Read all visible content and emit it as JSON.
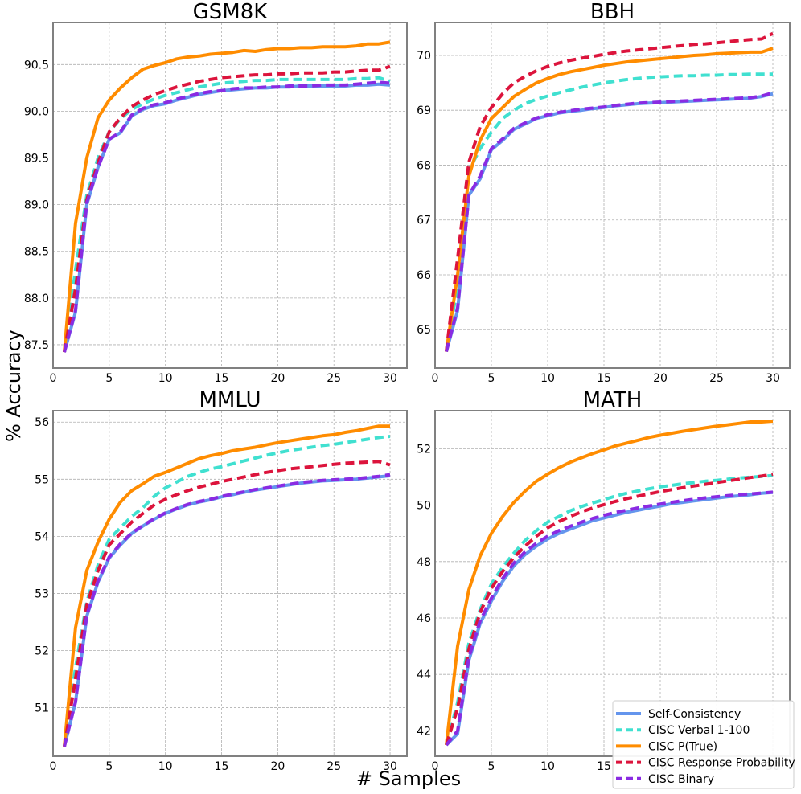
{
  "figure": {
    "xlabel": "# Samples",
    "ylabel": "% Accuracy"
  },
  "series_styles": [
    {
      "name": "Self-Consistency",
      "color": "#6495ED",
      "dashed": false
    },
    {
      "name": "CISC Verbal 1-100",
      "color": "#40E0D0",
      "dashed": true
    },
    {
      "name": "CISC P(True)",
      "color": "#FF8C00",
      "dashed": false
    },
    {
      "name": "CISC Response Probability",
      "color": "#DC143C",
      "dashed": true
    },
    {
      "name": "CISC Binary",
      "color": "#8A2BE2",
      "dashed": true
    }
  ],
  "chart_data": [
    {
      "type": "line",
      "title": "GSM8K",
      "xlabel": "# Samples",
      "ylabel": "% Accuracy",
      "x": [
        1,
        2,
        3,
        4,
        5,
        6,
        7,
        8,
        9,
        10,
        11,
        12,
        13,
        14,
        15,
        16,
        17,
        18,
        19,
        20,
        21,
        22,
        23,
        24,
        25,
        26,
        27,
        28,
        29,
        30
      ],
      "xlim": [
        0,
        31.5
      ],
      "ylim": [
        87.25,
        90.95
      ],
      "xticks": [
        0,
        5,
        10,
        15,
        20,
        25,
        30
      ],
      "yticks": [
        87.5,
        88.0,
        88.5,
        89.0,
        89.5,
        90.0,
        90.5
      ],
      "ytick_labels": [
        "87.5",
        "88.0",
        "88.5",
        "89.0",
        "89.5",
        "90.0",
        "90.5"
      ],
      "grid": true,
      "series": [
        {
          "name": "Self-Consistency",
          "values": [
            87.42,
            87.85,
            89.0,
            89.4,
            89.7,
            89.77,
            89.95,
            90.02,
            90.06,
            90.08,
            90.12,
            90.15,
            90.18,
            90.2,
            90.22,
            90.23,
            90.24,
            90.25,
            90.25,
            90.26,
            90.26,
            90.27,
            90.27,
            90.27,
            90.27,
            90.27,
            90.28,
            90.28,
            90.29,
            90.28
          ]
        },
        {
          "name": "CISC Verbal 1-100",
          "values": [
            87.42,
            88.3,
            89.1,
            89.5,
            89.78,
            89.92,
            90.02,
            90.08,
            90.13,
            90.17,
            90.2,
            90.23,
            90.26,
            90.28,
            90.3,
            90.31,
            90.32,
            90.33,
            90.33,
            90.34,
            90.34,
            90.34,
            90.34,
            90.34,
            90.34,
            90.34,
            90.35,
            90.35,
            90.36,
            90.32
          ]
        },
        {
          "name": "CISC P(True)",
          "values": [
            87.42,
            88.8,
            89.5,
            89.93,
            90.12,
            90.25,
            90.36,
            90.45,
            90.49,
            90.52,
            90.56,
            90.58,
            90.59,
            90.61,
            90.62,
            90.63,
            90.65,
            90.64,
            90.66,
            90.67,
            90.67,
            90.68,
            90.68,
            90.69,
            90.69,
            90.69,
            90.7,
            90.72,
            90.72,
            90.74
          ]
        },
        {
          "name": "CISC Response Probability",
          "values": [
            87.42,
            88.1,
            89.05,
            89.45,
            89.78,
            89.93,
            90.05,
            90.12,
            90.18,
            90.22,
            90.26,
            90.29,
            90.32,
            90.34,
            90.36,
            90.37,
            90.38,
            90.39,
            90.39,
            90.4,
            90.4,
            90.41,
            90.41,
            90.41,
            90.42,
            90.42,
            90.43,
            90.44,
            90.44,
            90.48
          ]
        },
        {
          "name": "CISC Binary",
          "values": [
            87.42,
            87.87,
            89.02,
            89.4,
            89.7,
            89.78,
            89.96,
            90.03,
            90.07,
            90.09,
            90.13,
            90.16,
            90.19,
            90.21,
            90.22,
            90.24,
            90.25,
            90.25,
            90.26,
            90.26,
            90.27,
            90.27,
            90.27,
            90.28,
            90.28,
            90.28,
            90.29,
            90.3,
            90.31,
            90.3
          ]
        }
      ]
    },
    {
      "type": "line",
      "title": "BBH",
      "xlabel": "# Samples",
      "ylabel": "% Accuracy",
      "x": [
        1,
        2,
        3,
        4,
        5,
        6,
        7,
        8,
        9,
        10,
        11,
        12,
        13,
        14,
        15,
        16,
        17,
        18,
        19,
        20,
        21,
        22,
        23,
        24,
        25,
        26,
        27,
        28,
        29,
        30
      ],
      "xlim": [
        0,
        31.5
      ],
      "ylim": [
        64.3,
        70.6
      ],
      "xticks": [
        0,
        5,
        10,
        15,
        20,
        25,
        30
      ],
      "yticks": [
        65,
        66,
        67,
        68,
        69,
        70
      ],
      "ytick_labels": [
        "65",
        "66",
        "67",
        "68",
        "69",
        "70"
      ],
      "grid": true,
      "series": [
        {
          "name": "Self-Consistency",
          "values": [
            64.6,
            65.35,
            67.45,
            67.75,
            68.28,
            68.45,
            68.65,
            68.75,
            68.85,
            68.9,
            68.95,
            68.98,
            69.0,
            69.03,
            69.05,
            69.08,
            69.1,
            69.12,
            69.13,
            69.14,
            69.15,
            69.16,
            69.17,
            69.18,
            69.19,
            69.2,
            69.21,
            69.22,
            69.25,
            69.3
          ]
        },
        {
          "name": "CISC Verbal 1-100",
          "values": [
            64.6,
            65.8,
            67.9,
            68.3,
            68.6,
            68.85,
            69.0,
            69.12,
            69.2,
            69.26,
            69.32,
            69.37,
            69.42,
            69.46,
            69.5,
            69.53,
            69.56,
            69.58,
            69.6,
            69.61,
            69.62,
            69.63,
            69.63,
            69.64,
            69.64,
            69.65,
            69.65,
            69.66,
            69.66,
            69.66
          ]
        },
        {
          "name": "CISC P(True)",
          "values": [
            64.6,
            66.0,
            67.8,
            68.45,
            68.85,
            69.05,
            69.25,
            69.38,
            69.5,
            69.58,
            69.65,
            69.7,
            69.74,
            69.78,
            69.82,
            69.85,
            69.88,
            69.9,
            69.92,
            69.94,
            69.96,
            69.98,
            70.0,
            70.01,
            70.03,
            70.04,
            70.05,
            70.06,
            70.06,
            70.13
          ]
        },
        {
          "name": "CISC Response Probability",
          "values": [
            64.6,
            66.3,
            68.05,
            68.7,
            69.05,
            69.3,
            69.5,
            69.62,
            69.72,
            69.8,
            69.86,
            69.91,
            69.95,
            69.98,
            70.02,
            70.05,
            70.08,
            70.1,
            70.12,
            70.14,
            70.16,
            70.18,
            70.2,
            70.21,
            70.23,
            70.25,
            70.27,
            70.29,
            70.3,
            70.4
          ]
        },
        {
          "name": "CISC Binary",
          "values": [
            64.6,
            65.4,
            67.45,
            67.8,
            68.3,
            68.48,
            68.67,
            68.77,
            68.86,
            68.92,
            68.96,
            68.99,
            69.02,
            69.04,
            69.06,
            69.09,
            69.11,
            69.13,
            69.14,
            69.15,
            69.16,
            69.17,
            69.18,
            69.19,
            69.2,
            69.21,
            69.22,
            69.23,
            69.26,
            69.32
          ]
        }
      ]
    },
    {
      "type": "line",
      "title": "MMLU",
      "xlabel": "# Samples",
      "ylabel": "% Accuracy",
      "x": [
        1,
        2,
        3,
        4,
        5,
        6,
        7,
        8,
        9,
        10,
        11,
        12,
        13,
        14,
        15,
        16,
        17,
        18,
        19,
        20,
        21,
        22,
        23,
        24,
        25,
        26,
        27,
        28,
        29,
        30
      ],
      "xlim": [
        0,
        31.5
      ],
      "ylim": [
        50.15,
        56.2
      ],
      "xticks": [
        0,
        5,
        10,
        15,
        20,
        25,
        30
      ],
      "yticks": [
        51,
        52,
        53,
        54,
        55,
        56
      ],
      "ytick_labels": [
        "51",
        "52",
        "53",
        "54",
        "55",
        "56"
      ],
      "grid": true,
      "series": [
        {
          "name": "Self-Consistency",
          "values": [
            50.32,
            51.1,
            52.6,
            53.2,
            53.62,
            53.85,
            54.05,
            54.18,
            54.3,
            54.4,
            54.48,
            54.55,
            54.6,
            54.64,
            54.69,
            54.73,
            54.77,
            54.81,
            54.84,
            54.87,
            54.9,
            54.93,
            54.95,
            54.97,
            54.98,
            54.99,
            55.0,
            55.02,
            55.04,
            55.06
          ]
        },
        {
          "name": "CISC Verbal 1-100",
          "values": [
            50.32,
            51.7,
            52.85,
            53.5,
            53.95,
            54.15,
            54.35,
            54.5,
            54.7,
            54.85,
            54.95,
            55.05,
            55.12,
            55.18,
            55.22,
            55.27,
            55.32,
            55.37,
            55.42,
            55.46,
            55.5,
            55.53,
            55.56,
            55.59,
            55.61,
            55.64,
            55.67,
            55.7,
            55.73,
            55.75
          ]
        },
        {
          "name": "CISC P(True)",
          "values": [
            50.32,
            52.4,
            53.4,
            53.9,
            54.3,
            54.6,
            54.8,
            54.92,
            55.05,
            55.12,
            55.2,
            55.28,
            55.36,
            55.41,
            55.45,
            55.5,
            55.53,
            55.56,
            55.6,
            55.64,
            55.67,
            55.7,
            55.73,
            55.76,
            55.78,
            55.82,
            55.85,
            55.89,
            55.93,
            55.93
          ]
        },
        {
          "name": "CISC Response Probability",
          "values": [
            50.32,
            51.5,
            52.8,
            53.4,
            53.85,
            54.05,
            54.25,
            54.4,
            54.55,
            54.65,
            54.73,
            54.8,
            54.86,
            54.91,
            54.96,
            55.0,
            55.04,
            55.08,
            55.12,
            55.15,
            55.18,
            55.2,
            55.22,
            55.24,
            55.26,
            55.28,
            55.29,
            55.3,
            55.31,
            55.25
          ]
        },
        {
          "name": "CISC Binary",
          "values": [
            50.32,
            51.1,
            52.62,
            53.22,
            53.64,
            53.87,
            54.06,
            54.19,
            54.31,
            54.41,
            54.49,
            54.56,
            54.61,
            54.65,
            54.7,
            54.74,
            54.78,
            54.82,
            54.85,
            54.88,
            54.91,
            54.94,
            54.96,
            54.98,
            54.99,
            55.0,
            55.01,
            55.03,
            55.05,
            55.08
          ]
        }
      ]
    },
    {
      "type": "line",
      "title": "MATH",
      "xlabel": "# Samples",
      "ylabel": "% Accuracy",
      "x": [
        1,
        2,
        3,
        4,
        5,
        6,
        7,
        8,
        9,
        10,
        11,
        12,
        13,
        14,
        15,
        16,
        17,
        18,
        19,
        20,
        21,
        22,
        23,
        24,
        25,
        26,
        27,
        28,
        29,
        30
      ],
      "xlim": [
        0,
        31.5
      ],
      "ylim": [
        41.1,
        53.35
      ],
      "xticks": [
        0,
        5,
        10,
        15,
        20,
        25,
        30
      ],
      "yticks": [
        42,
        44,
        46,
        48,
        50,
        52
      ],
      "ytick_labels": [
        "42",
        "44",
        "46",
        "48",
        "50",
        "52"
      ],
      "grid": true,
      "series": [
        {
          "name": "Self-Consistency",
          "values": [
            41.5,
            41.9,
            44.5,
            45.8,
            46.6,
            47.3,
            47.85,
            48.25,
            48.55,
            48.8,
            49.0,
            49.15,
            49.3,
            49.45,
            49.55,
            49.65,
            49.75,
            49.82,
            49.9,
            49.97,
            50.05,
            50.1,
            50.15,
            50.2,
            50.25,
            50.3,
            50.33,
            50.37,
            50.42,
            50.45
          ]
        },
        {
          "name": "CISC Verbal 1-100",
          "values": [
            41.5,
            43.0,
            45.1,
            46.3,
            47.2,
            47.8,
            48.3,
            48.75,
            49.1,
            49.4,
            49.6,
            49.8,
            49.95,
            50.08,
            50.2,
            50.32,
            50.42,
            50.5,
            50.58,
            50.65,
            50.7,
            50.76,
            50.8,
            50.85,
            50.88,
            50.92,
            50.96,
            50.99,
            51.02,
            51.05
          ]
        },
        {
          "name": "CISC P(True)",
          "values": [
            41.5,
            45.0,
            47.0,
            48.2,
            49.0,
            49.6,
            50.1,
            50.5,
            50.85,
            51.1,
            51.33,
            51.52,
            51.68,
            51.83,
            51.96,
            52.1,
            52.2,
            52.3,
            52.4,
            52.48,
            52.55,
            52.62,
            52.68,
            52.74,
            52.8,
            52.85,
            52.9,
            52.95,
            52.95,
            52.98
          ]
        },
        {
          "name": "CISC Response Probability",
          "values": [
            41.5,
            42.8,
            44.9,
            46.2,
            47.05,
            47.65,
            48.15,
            48.55,
            48.9,
            49.2,
            49.42,
            49.6,
            49.76,
            49.9,
            50.02,
            50.13,
            50.23,
            50.32,
            50.4,
            50.48,
            50.55,
            50.62,
            50.68,
            50.74,
            50.8,
            50.86,
            50.92,
            50.98,
            51.03,
            51.1
          ]
        },
        {
          "name": "CISC Binary",
          "values": [
            41.5,
            42.0,
            44.6,
            45.9,
            46.7,
            47.4,
            47.95,
            48.35,
            48.65,
            48.9,
            49.1,
            49.25,
            49.4,
            49.53,
            49.64,
            49.74,
            49.82,
            49.9,
            49.97,
            50.04,
            50.1,
            50.16,
            50.21,
            50.26,
            50.3,
            50.34,
            50.37,
            50.4,
            50.43,
            50.46
          ]
        }
      ]
    }
  ]
}
